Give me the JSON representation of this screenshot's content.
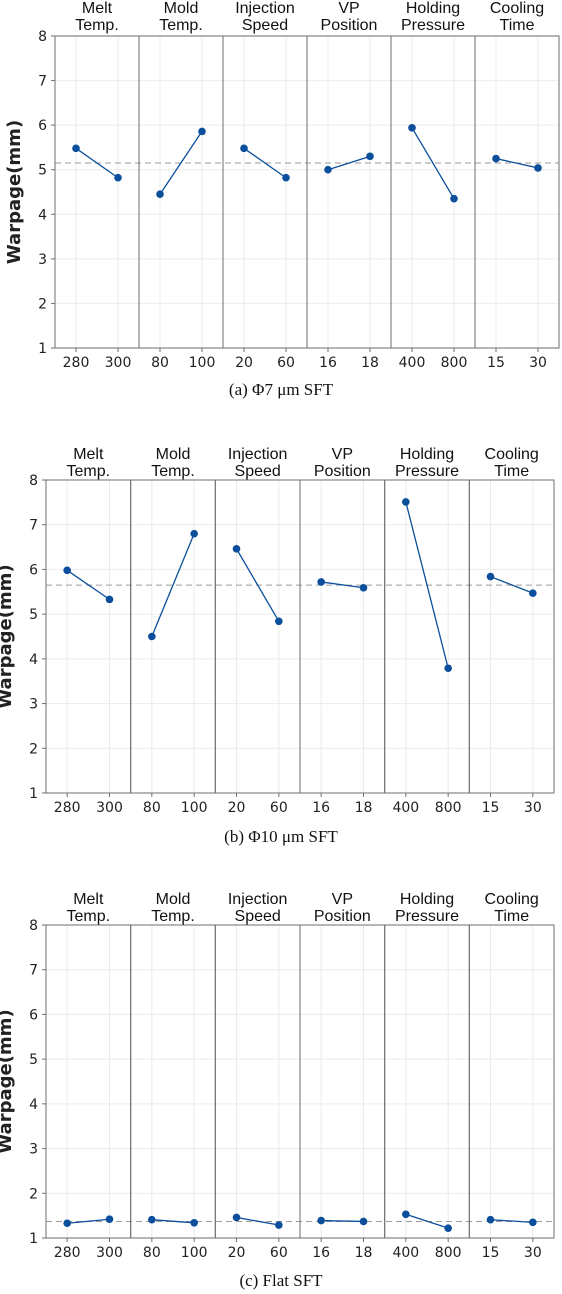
{
  "chart_data": [
    {
      "type": "line",
      "caption": "(a) Φ7 μm SFT",
      "ylabel": "Warpage(mm)",
      "ylim": [
        1,
        8
      ],
      "yticks": [
        1,
        2,
        3,
        4,
        5,
        6,
        7,
        8
      ],
      "mean": 5.15,
      "factors": [
        {
          "label": [
            "Melt",
            "Temp."
          ],
          "levels": [
            "280",
            "300"
          ],
          "values": [
            5.48,
            4.82
          ]
        },
        {
          "label": [
            "Mold",
            "Temp."
          ],
          "levels": [
            "80",
            "100"
          ],
          "values": [
            4.45,
            5.86
          ]
        },
        {
          "label": [
            "Injection",
            "Speed"
          ],
          "levels": [
            "20",
            "60"
          ],
          "values": [
            5.48,
            4.82
          ]
        },
        {
          "label": [
            "VP",
            "Position"
          ],
          "levels": [
            "16",
            "18"
          ],
          "values": [
            5.0,
            5.3
          ]
        },
        {
          "label": [
            "Holding",
            "Pressure"
          ],
          "levels": [
            "400",
            "800"
          ],
          "values": [
            5.94,
            4.35
          ]
        },
        {
          "label": [
            "Cooling",
            "Time"
          ],
          "levels": [
            "15",
            "30"
          ],
          "values": [
            5.25,
            5.04
          ]
        }
      ]
    },
    {
      "type": "line",
      "caption": "(b) Φ10 μm SFT",
      "ylabel": "Warpage(mm)",
      "ylim": [
        1,
        8
      ],
      "yticks": [
        1,
        2,
        3,
        4,
        5,
        6,
        7,
        8
      ],
      "mean": 5.65,
      "factors": [
        {
          "label": [
            "Melt",
            "Temp."
          ],
          "levels": [
            "280",
            "300"
          ],
          "values": [
            5.98,
            5.33
          ]
        },
        {
          "label": [
            "Mold",
            "Temp."
          ],
          "levels": [
            "80",
            "100"
          ],
          "values": [
            4.5,
            6.8
          ]
        },
        {
          "label": [
            "Injection",
            "Speed"
          ],
          "levels": [
            "20",
            "60"
          ],
          "values": [
            6.46,
            4.84
          ]
        },
        {
          "label": [
            "VP",
            "Position"
          ],
          "levels": [
            "16",
            "18"
          ],
          "values": [
            5.72,
            5.59
          ]
        },
        {
          "label": [
            "Holding",
            "Pressure"
          ],
          "levels": [
            "400",
            "800"
          ],
          "values": [
            7.51,
            3.79
          ]
        },
        {
          "label": [
            "Cooling",
            "Time"
          ],
          "levels": [
            "15",
            "30"
          ],
          "values": [
            5.84,
            5.47
          ]
        }
      ]
    },
    {
      "type": "line",
      "caption": "(c) Flat SFT",
      "ylabel": "Warpage(mm)",
      "ylim": [
        1,
        8
      ],
      "yticks": [
        1,
        2,
        3,
        4,
        5,
        6,
        7,
        8
      ],
      "mean": 1.37,
      "factors": [
        {
          "label": [
            "Melt",
            "Temp."
          ],
          "levels": [
            "280",
            "300"
          ],
          "values": [
            1.33,
            1.42
          ]
        },
        {
          "label": [
            "Mold",
            "Temp."
          ],
          "levels": [
            "80",
            "100"
          ],
          "values": [
            1.41,
            1.34
          ]
        },
        {
          "label": [
            "Injection",
            "Speed"
          ],
          "levels": [
            "20",
            "60"
          ],
          "values": [
            1.46,
            1.29
          ]
        },
        {
          "label": [
            "VP",
            "Position"
          ],
          "levels": [
            "16",
            "18"
          ],
          "values": [
            1.39,
            1.37
          ]
        },
        {
          "label": [
            "Holding",
            "Pressure"
          ],
          "levels": [
            "400",
            "800"
          ],
          "values": [
            1.53,
            1.22
          ]
        },
        {
          "label": [
            "Cooling",
            "Time"
          ],
          "levels": [
            "15",
            "30"
          ],
          "values": [
            1.41,
            1.35
          ]
        }
      ]
    }
  ],
  "colors": {
    "series": "#0b4f9c",
    "mean_line": "#9a9a9a",
    "frame": "#6e6e6e",
    "grid": "#ebebeb"
  }
}
